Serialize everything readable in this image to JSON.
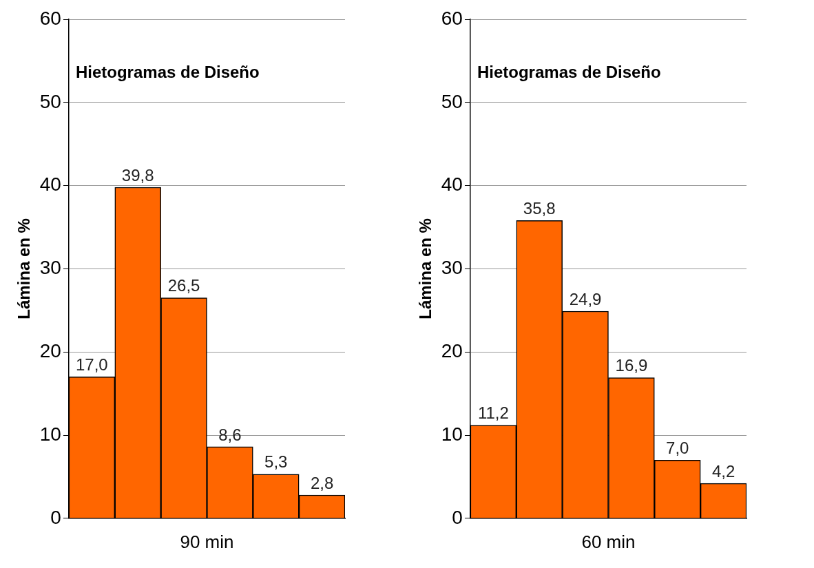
{
  "chart_data": [
    {
      "type": "bar",
      "title": "Hietogramas de Diseño",
      "xlabel": "90 min",
      "ylabel": "Lámina en %",
      "categories": [
        null,
        null,
        null,
        null,
        null,
        null
      ],
      "values": [
        17.0,
        39.8,
        26.5,
        8.6,
        5.3,
        2.8
      ],
      "value_labels": [
        "17,0",
        "39,8",
        "26,5",
        "8,6",
        "5,3",
        "2,8"
      ],
      "color": "#ff6600",
      "ylim": [
        0,
        60
      ],
      "yticks": [
        0,
        10,
        20,
        30,
        40,
        50,
        60
      ],
      "grid": "y",
      "legend": false
    },
    {
      "type": "bar",
      "title": "Hietogramas de Diseño",
      "xlabel": "60 min",
      "ylabel": "Lámina en %",
      "categories": [
        null,
        null,
        null,
        null,
        null,
        null
      ],
      "values": [
        11.2,
        35.8,
        24.9,
        16.9,
        7.0,
        4.2
      ],
      "value_labels": [
        "11,2",
        "35,8",
        "24,9",
        "16,9",
        "7,0",
        "4,2"
      ],
      "color": "#ff6600",
      "ylim": [
        0,
        60
      ],
      "yticks": [
        0,
        10,
        20,
        30,
        40,
        50,
        60
      ],
      "grid": "y",
      "legend": false
    }
  ]
}
